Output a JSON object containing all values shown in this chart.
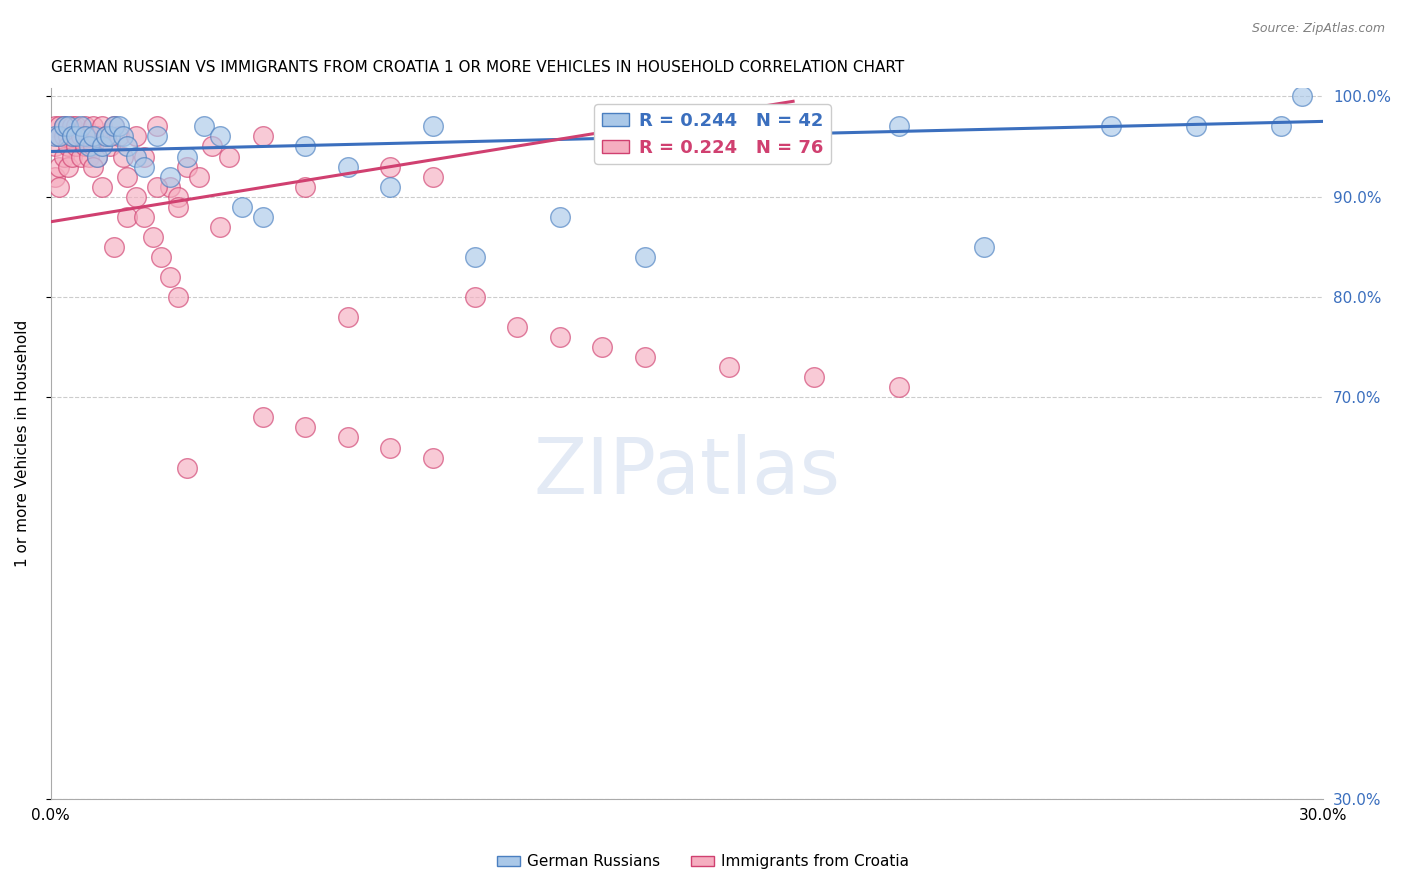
{
  "title": "GERMAN RUSSIAN VS IMMIGRANTS FROM CROATIA 1 OR MORE VEHICLES IN HOUSEHOLD CORRELATION CHART",
  "source": "Source: ZipAtlas.com",
  "ylabel": "1 or more Vehicles in Household",
  "x_min": 0.0,
  "x_max": 0.3,
  "y_min": 0.3,
  "y_max": 1.008,
  "y_ticks": [
    0.3,
    0.7,
    0.8,
    0.9,
    1.0
  ],
  "y_tick_labels": [
    "30.0%",
    "70.0%",
    "80.0%",
    "90.0%",
    "100.0%"
  ],
  "blue_R": 0.244,
  "blue_N": 42,
  "pink_R": 0.224,
  "pink_N": 76,
  "blue_face_color": "#aac8e8",
  "pink_face_color": "#f5aec0",
  "blue_edge_color": "#4a7fc0",
  "pink_edge_color": "#d04070",
  "blue_line_color": "#3b6fbe",
  "pink_line_color": "#d04070",
  "legend_label_blue": "R = 0.244   N = 42",
  "legend_label_pink": "R = 0.224   N = 76",
  "bottom_label_blue": "German Russians",
  "bottom_label_pink": "Immigrants from Croatia",
  "watermark": "ZIPatlas",
  "blue_scatter_x": [
    0.001,
    0.002,
    0.003,
    0.004,
    0.005,
    0.006,
    0.007,
    0.008,
    0.009,
    0.01,
    0.011,
    0.012,
    0.013,
    0.014,
    0.015,
    0.016,
    0.017,
    0.018,
    0.02,
    0.022,
    0.025,
    0.028,
    0.032,
    0.036,
    0.04,
    0.045,
    0.05,
    0.06,
    0.07,
    0.08,
    0.09,
    0.1,
    0.12,
    0.14,
    0.16,
    0.18,
    0.2,
    0.22,
    0.25,
    0.27,
    0.29,
    0.295
  ],
  "blue_scatter_y": [
    0.96,
    0.96,
    0.97,
    0.97,
    0.96,
    0.96,
    0.97,
    0.96,
    0.95,
    0.96,
    0.94,
    0.95,
    0.96,
    0.96,
    0.97,
    0.97,
    0.96,
    0.95,
    0.94,
    0.93,
    0.96,
    0.92,
    0.94,
    0.97,
    0.96,
    0.89,
    0.88,
    0.95,
    0.93,
    0.91,
    0.97,
    0.84,
    0.88,
    0.84,
    0.97,
    0.97,
    0.97,
    0.85,
    0.97,
    0.97,
    0.97,
    1.0
  ],
  "pink_scatter_x": [
    0.001,
    0.001,
    0.001,
    0.002,
    0.002,
    0.002,
    0.002,
    0.003,
    0.003,
    0.003,
    0.004,
    0.004,
    0.004,
    0.005,
    0.005,
    0.005,
    0.006,
    0.006,
    0.007,
    0.007,
    0.008,
    0.008,
    0.009,
    0.009,
    0.01,
    0.01,
    0.011,
    0.011,
    0.012,
    0.013,
    0.014,
    0.015,
    0.016,
    0.017,
    0.018,
    0.02,
    0.022,
    0.025,
    0.028,
    0.03,
    0.032,
    0.035,
    0.038,
    0.042,
    0.05,
    0.06,
    0.07,
    0.08,
    0.09,
    0.1,
    0.11,
    0.12,
    0.13,
    0.14,
    0.16,
    0.18,
    0.2,
    0.015,
    0.018,
    0.025,
    0.03,
    0.04,
    0.05,
    0.06,
    0.07,
    0.08,
    0.09,
    0.01,
    0.012,
    0.02,
    0.022,
    0.024,
    0.026,
    0.028,
    0.03,
    0.032
  ],
  "pink_scatter_y": [
    0.97,
    0.95,
    0.92,
    0.97,
    0.96,
    0.93,
    0.91,
    0.97,
    0.96,
    0.94,
    0.96,
    0.95,
    0.93,
    0.97,
    0.96,
    0.94,
    0.97,
    0.95,
    0.96,
    0.94,
    0.97,
    0.95,
    0.96,
    0.94,
    0.97,
    0.95,
    0.96,
    0.94,
    0.97,
    0.96,
    0.95,
    0.97,
    0.96,
    0.94,
    0.92,
    0.96,
    0.94,
    0.97,
    0.91,
    0.9,
    0.93,
    0.92,
    0.95,
    0.94,
    0.96,
    0.91,
    0.78,
    0.93,
    0.92,
    0.8,
    0.77,
    0.76,
    0.75,
    0.74,
    0.73,
    0.72,
    0.71,
    0.85,
    0.88,
    0.91,
    0.89,
    0.87,
    0.68,
    0.67,
    0.66,
    0.65,
    0.64,
    0.93,
    0.91,
    0.9,
    0.88,
    0.86,
    0.84,
    0.82,
    0.8,
    0.63
  ],
  "blue_line_x0": 0.0,
  "blue_line_x1": 0.3,
  "blue_line_y0": 0.945,
  "blue_line_y1": 0.975,
  "pink_line_x0": 0.0,
  "pink_line_x1": 0.175,
  "pink_line_y0": 0.875,
  "pink_line_y1": 0.995
}
